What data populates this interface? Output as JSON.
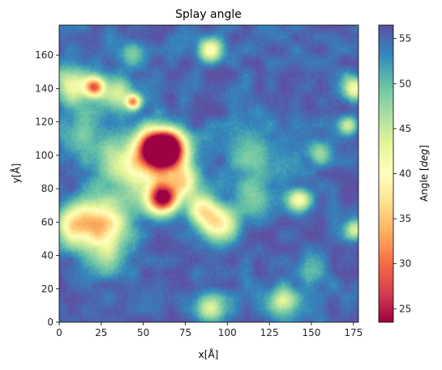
{
  "chart_data": {
    "type": "heatmap",
    "title": "Splay angle",
    "xlabel": "x[Å]",
    "ylabel": "y[Å]",
    "xlim": [
      0,
      178
    ],
    "ylim": [
      0,
      178
    ],
    "x_ticks": [
      0,
      25,
      50,
      75,
      100,
      125,
      150,
      175
    ],
    "y_ticks": [
      0,
      20,
      40,
      60,
      80,
      100,
      120,
      140,
      160
    ],
    "colorbar": {
      "label": "Angle [deg]",
      "label_plain": "Angle [",
      "label_italic": "deg",
      "label_close": "]",
      "range": [
        23.5,
        56.5
      ],
      "ticks": [
        25,
        30,
        35,
        40,
        45,
        50,
        55
      ],
      "colormap": "Spectral"
    },
    "background_value": 55,
    "hotspots": [
      {
        "x": 57,
        "y": 104,
        "value": 26,
        "radius": 8
      },
      {
        "x": 65,
        "y": 104,
        "value": 27,
        "radius": 7
      },
      {
        "x": 61,
        "y": 74,
        "value": 28,
        "radius": 6
      },
      {
        "x": 21,
        "y": 141,
        "value": 34,
        "radius": 4
      },
      {
        "x": 44,
        "y": 132,
        "value": 36,
        "radius": 3
      },
      {
        "x": 25,
        "y": 60,
        "value": 38,
        "radius": 10
      },
      {
        "x": 8,
        "y": 58,
        "value": 42,
        "radius": 8
      },
      {
        "x": 95,
        "y": 58,
        "value": 40,
        "radius": 7
      },
      {
        "x": 85,
        "y": 67,
        "value": 42,
        "radius": 6
      },
      {
        "x": 73,
        "y": 84,
        "value": 44,
        "radius": 7
      },
      {
        "x": 90,
        "y": 163,
        "value": 40,
        "radius": 5
      },
      {
        "x": 143,
        "y": 73,
        "value": 43,
        "radius": 5
      },
      {
        "x": 175,
        "y": 140,
        "value": 42,
        "radius": 5
      },
      {
        "x": 172,
        "y": 118,
        "value": 45,
        "radius": 4
      },
      {
        "x": 8,
        "y": 142,
        "value": 43,
        "radius": 8
      },
      {
        "x": 33,
        "y": 137,
        "value": 45,
        "radius": 7
      },
      {
        "x": 90,
        "y": 8,
        "value": 44,
        "radius": 6
      },
      {
        "x": 133,
        "y": 12,
        "value": 45,
        "radius": 6
      },
      {
        "x": 57,
        "y": 90,
        "value": 45,
        "radius": 14
      },
      {
        "x": 35,
        "y": 95,
        "value": 48,
        "radius": 10
      },
      {
        "x": 118,
        "y": 100,
        "value": 50,
        "radius": 12
      },
      {
        "x": 14,
        "y": 115,
        "value": 50,
        "radius": 10
      },
      {
        "x": 28,
        "y": 42,
        "value": 48,
        "radius": 9
      },
      {
        "x": 155,
        "y": 102,
        "value": 48,
        "radius": 5
      },
      {
        "x": 42,
        "y": 160,
        "value": 50,
        "radius": 6
      },
      {
        "x": 176,
        "y": 55,
        "value": 45,
        "radius": 4
      },
      {
        "x": 115,
        "y": 75,
        "value": 50,
        "radius": 8
      },
      {
        "x": 150,
        "y": 30,
        "value": 52,
        "radius": 8
      }
    ]
  }
}
